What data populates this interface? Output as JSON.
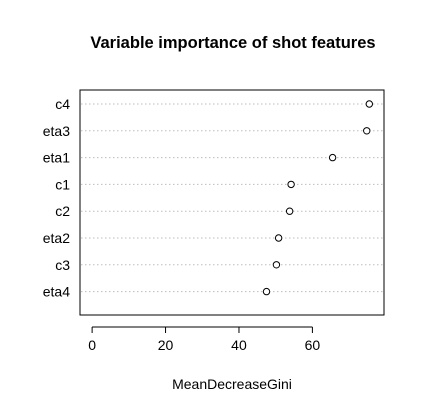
{
  "chart_data": {
    "type": "dotchart",
    "title": "Variable importance of shot features",
    "xlabel": "MeanDecreaseGini",
    "ylabel": "",
    "categories": [
      "c4",
      "eta3",
      "eta1",
      "c1",
      "c2",
      "eta2",
      "c3",
      "eta4"
    ],
    "values": [
      75.5,
      74.8,
      65.5,
      54.2,
      53.8,
      50.8,
      50.2,
      47.5
    ],
    "xlim": [
      -3.3,
      79.5
    ],
    "xticks": [
      0,
      20,
      40,
      60
    ],
    "grid": "dotted horizontal per category",
    "legend": "none"
  }
}
